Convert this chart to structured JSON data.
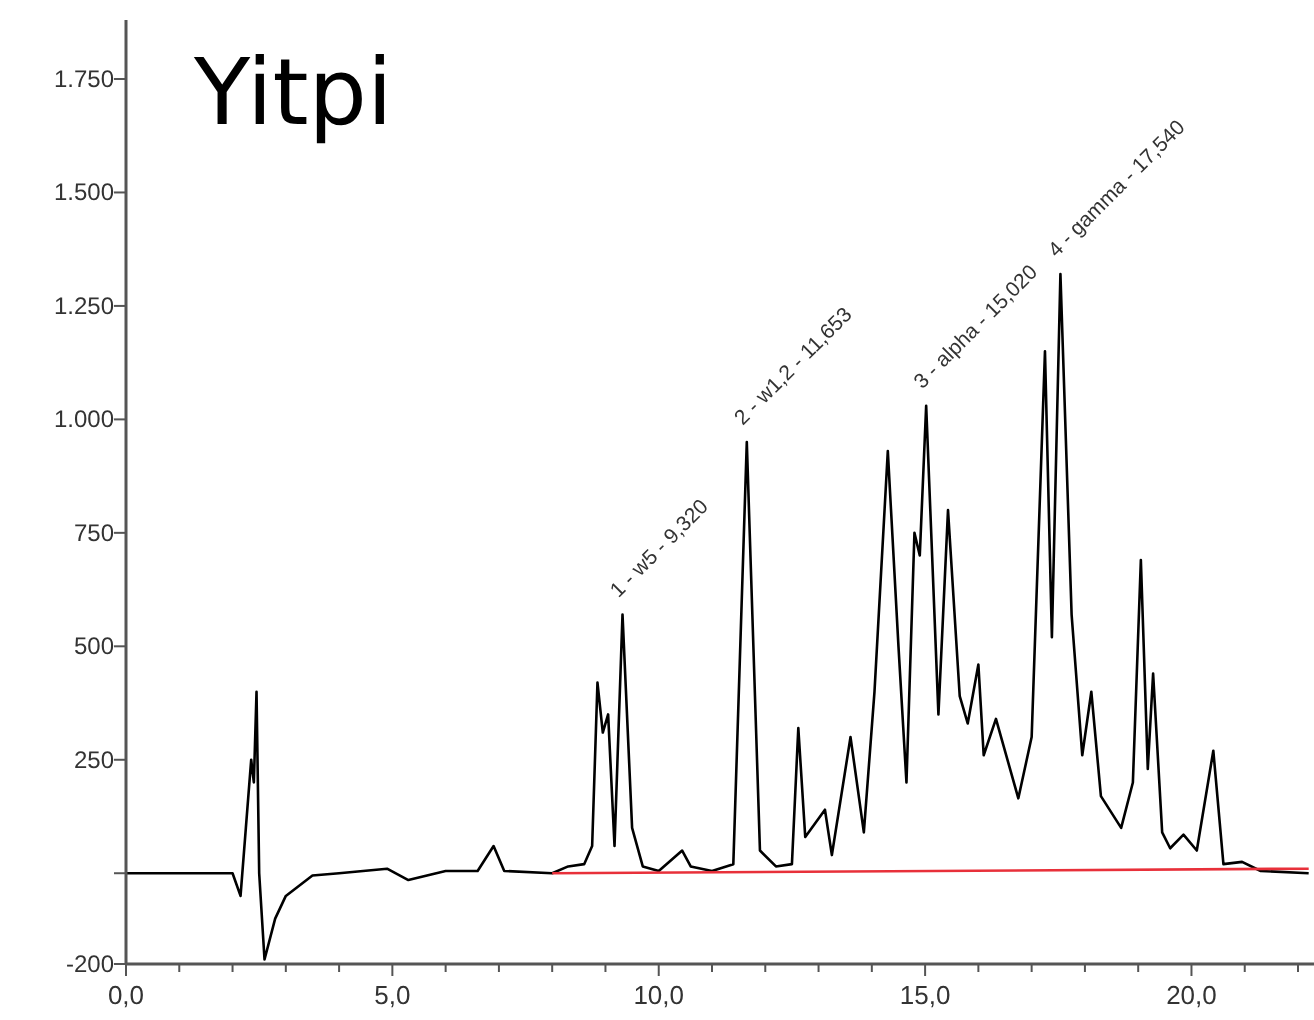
{
  "chart_data": {
    "type": "line",
    "title": "Yitpi",
    "x": [
      0,
      2.0,
      2.15,
      2.25,
      2.35,
      2.4,
      2.45,
      2.5,
      2.6,
      2.8,
      3.0,
      3.5,
      4.0,
      4.9,
      5.3,
      6.0,
      6.6,
      6.9,
      7.1,
      8.0,
      8.3,
      8.6,
      8.75,
      8.85,
      8.95,
      9.05,
      9.17,
      9.32,
      9.5,
      9.7,
      10.0,
      10.44,
      10.6,
      11.0,
      11.4,
      11.653,
      11.9,
      12.2,
      12.5,
      12.62,
      12.75,
      13.12,
      13.25,
      13.6,
      13.85,
      14.05,
      14.3,
      14.5,
      14.65,
      14.8,
      14.9,
      15.02,
      15.25,
      15.43,
      15.65,
      15.8,
      16.0,
      16.1,
      16.33,
      16.75,
      17.0,
      17.25,
      17.38,
      17.54,
      17.75,
      17.95,
      18.12,
      18.3,
      18.68,
      18.9,
      19.05,
      19.18,
      19.28,
      19.45,
      19.6,
      19.85,
      20.1,
      20.41,
      20.6,
      20.95,
      21.3,
      22.2
    ],
    "series": [
      {
        "color": "#000000",
        "values": [
          0,
          0,
          -50,
          100,
          250,
          200,
          400,
          0,
          -190,
          -100,
          -50,
          -5,
          0,
          10,
          -15,
          5,
          5,
          60,
          5,
          0,
          15,
          20,
          60,
          420,
          310,
          350,
          60,
          570,
          100,
          15,
          5,
          50,
          15,
          5,
          20,
          950,
          50,
          15,
          20,
          320,
          80,
          140,
          40,
          300,
          90,
          400,
          930,
          500,
          200,
          750,
          700,
          1030,
          350,
          800,
          390,
          330,
          460,
          260,
          340,
          165,
          300,
          1150,
          520,
          1320,
          570,
          260,
          400,
          170,
          100,
          200,
          690,
          230,
          440,
          90,
          55,
          85,
          50,
          270,
          20,
          25,
          5,
          0
        ]
      },
      {
        "type": "line",
        "color": "#e8303a",
        "x": [
          8.0,
          22.2
        ],
        "values": [
          0,
          10
        ]
      }
    ],
    "xlim": [
      0,
      22.3
    ],
    "ylim": [
      -200,
      1880
    ],
    "xticks": [
      {
        "value": 0,
        "label": "0,0"
      },
      {
        "value": 1,
        "label": null
      },
      {
        "value": 2,
        "label": null
      },
      {
        "value": 3,
        "label": null
      },
      {
        "value": 4,
        "label": null
      },
      {
        "value": 5,
        "label": "5,0"
      },
      {
        "value": 6,
        "label": null
      },
      {
        "value": 7,
        "label": null
      },
      {
        "value": 8,
        "label": null
      },
      {
        "value": 9,
        "label": null
      },
      {
        "value": 10,
        "label": "10,0"
      },
      {
        "value": 11,
        "label": null
      },
      {
        "value": 12,
        "label": null
      },
      {
        "value": 13,
        "label": null
      },
      {
        "value": 14,
        "label": null
      },
      {
        "value": 15,
        "label": "15,0"
      },
      {
        "value": 16,
        "label": null
      },
      {
        "value": 17,
        "label": null
      },
      {
        "value": 18,
        "label": null
      },
      {
        "value": 19,
        "label": null
      },
      {
        "value": 20,
        "label": "20,0"
      },
      {
        "value": 21,
        "label": null
      },
      {
        "value": 22,
        "label": null
      }
    ],
    "yticks": [
      -200,
      {
        "value": 0,
        "label": null
      },
      250,
      500,
      750,
      {
        "value": 1000,
        "label": "1.000"
      },
      {
        "value": 1250,
        "label": "1.250"
      },
      {
        "value": 1500,
        "label": "1.500"
      },
      {
        "value": 1750,
        "label": "1.750"
      }
    ],
    "annotations": [
      {
        "text": "1 - w5 - 9,320",
        "x": 9.32,
        "y": 570
      },
      {
        "text": "2 - w1,2 - 11,653",
        "x": 11.653,
        "y": 950
      },
      {
        "text": "3 - alpha - 15,020",
        "x": 15.02,
        "y": 1030
      },
      {
        "text": "4 - gamma - 17,540",
        "x": 17.54,
        "y": 1320
      }
    ],
    "grid": false,
    "marker": "none",
    "line_style": "solid"
  }
}
